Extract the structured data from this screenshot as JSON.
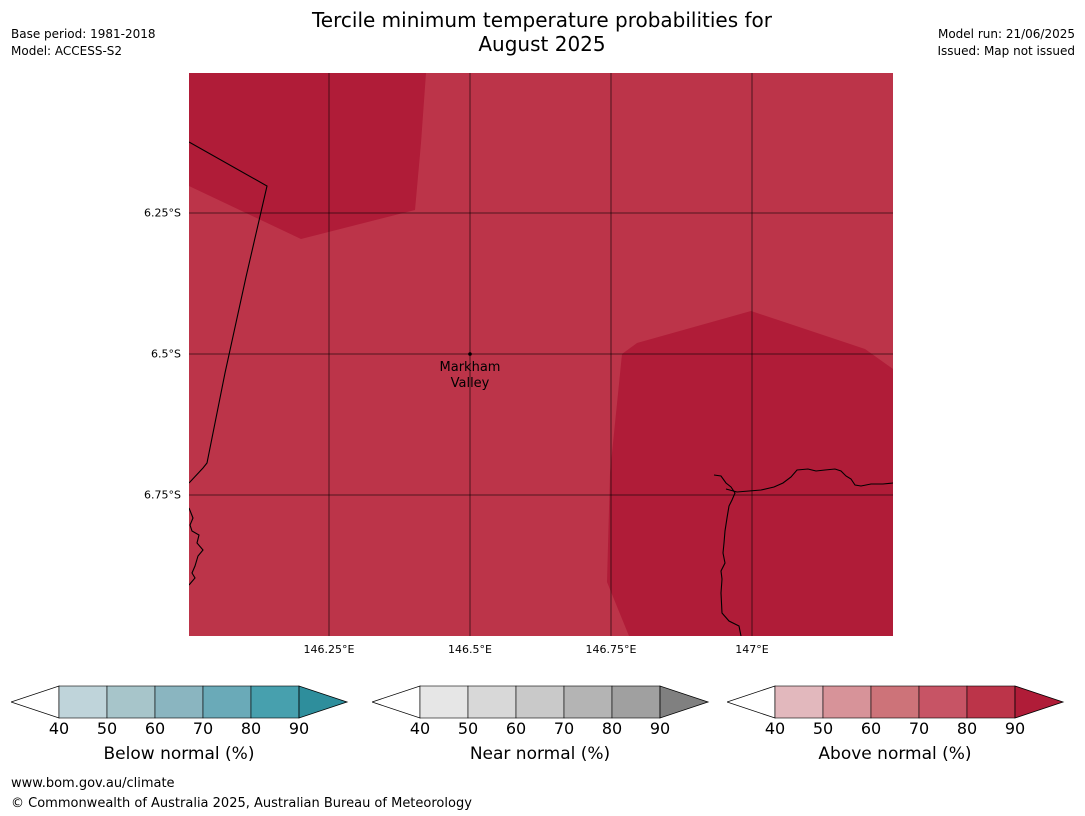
{
  "header": {
    "title_line1": "Tercile minimum temperature probabilities for",
    "title_line2": "August 2025",
    "base_period": "Base period: 1981-2018",
    "model": "Model: ACCESS-S2",
    "model_run": "Model run: 21/06/2025",
    "issued": "Issued: Map not issued"
  },
  "map": {
    "lat_labels": [
      "6.25°S",
      "6.5°S",
      "6.75°S"
    ],
    "lon_labels": [
      "146.25°E",
      "146.5°E",
      "146.75°E",
      "147°E"
    ],
    "place": {
      "line1": "Markham",
      "line2": "Valley"
    },
    "colors": {
      "above_80_90": "#bc3449",
      "above_90_plus": "#b01c38",
      "line": "#000000"
    }
  },
  "legends": [
    {
      "title": "Below normal (%)",
      "ticks": [
        "40",
        "50",
        "60",
        "70",
        "80",
        "90"
      ],
      "colors": [
        "#ffffff",
        "#bfd4da",
        "#a7c5ca",
        "#8ab5c0",
        "#6aaab8",
        "#47a0ae",
        "#2e8e9c"
      ]
    },
    {
      "title": "Near normal (%)",
      "ticks": [
        "40",
        "50",
        "60",
        "70",
        "80",
        "90"
      ],
      "colors": [
        "#ffffff",
        "#e6e6e6",
        "#d8d8d8",
        "#c9c9c9",
        "#b4b4b4",
        "#a0a0a0",
        "#808080"
      ]
    },
    {
      "title": "Above normal (%)",
      "ticks": [
        "40",
        "50",
        "60",
        "70",
        "80",
        "90"
      ],
      "colors": [
        "#ffffff",
        "#e2b8bd",
        "#d79399",
        "#cd7379",
        "#c75465",
        "#bc3449",
        "#b01c38"
      ]
    }
  ],
  "footer": {
    "url": "www.bom.gov.au/climate",
    "copyright": "© Commonwealth of Australia 2025, Australian Bureau of Meteorology"
  }
}
